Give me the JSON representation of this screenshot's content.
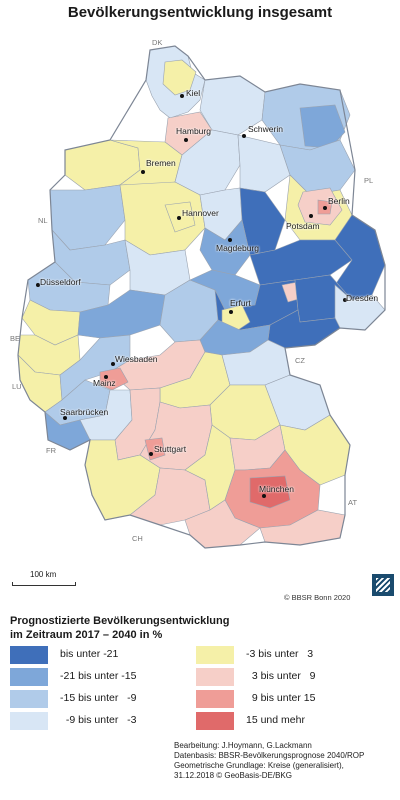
{
  "title": "Bevölkerungsentwicklung insgesamt",
  "colors": {
    "c1": "#3f6fba",
    "c2": "#7ea7d9",
    "c3": "#b0cbe9",
    "c4": "#d8e6f5",
    "c5": "#f5f0a8",
    "c6": "#f6cfc8",
    "c7": "#ef9d97",
    "c8": "#e06a6a",
    "border": "#9aa3b0",
    "outline": "#7d8695"
  },
  "cities": {
    "kiel": "Kiel",
    "hamburg": "Hamburg",
    "schwerin": "Schwerin",
    "bremen": "Bremen",
    "berlin": "Berlin",
    "potsdam": "Potsdam",
    "hannover": "Hannover",
    "magdeburg": "Magdeburg",
    "duesseldorf": "Düsseldorf",
    "erfurt": "Erfurt",
    "dresden": "Dresden",
    "wiesbaden": "Wiesbaden",
    "mainz": "Mainz",
    "saarbruecken": "Saarbrücken",
    "stuttgart": "Stuttgart",
    "muenchen": "München"
  },
  "countries": {
    "dk": "DK",
    "pl": "PL",
    "nl": "NL",
    "be": "BE",
    "lu": "LU",
    "fr": "FR",
    "cz": "CZ",
    "at": "AT",
    "ch": "CH"
  },
  "scale_label": "100  km",
  "credit": "© BBSR Bonn 2020",
  "legend": {
    "title_line1": "Prognostizierte Bevölkerungsentwicklung",
    "title_line2": "im Zeitraum 2017 – 2040 in %",
    "items": [
      {
        "label": "bis unter -21",
        "color": "#3f6fba"
      },
      {
        "label": "-21 bis unter -15",
        "color": "#7ea7d9"
      },
      {
        "label": "-15 bis unter   -9",
        "color": "#b0cbe9"
      },
      {
        "label": "  -9 bis unter   -3",
        "color": "#d8e6f5"
      },
      {
        "label": "-3 bis unter   3",
        "color": "#f5f0a8"
      },
      {
        "label": "  3 bis unter   9",
        "color": "#f6cfc8"
      },
      {
        "label": "  9 bis unter 15",
        "color": "#ef9d97"
      },
      {
        "label": "15 und mehr",
        "color": "#e06a6a"
      }
    ]
  },
  "source": {
    "line1": "Bearbeitung: J.Hoymann, G.Lackmann",
    "line2": "Datenbasis: BBSR-Bevölkerungsprognose 2040/ROP",
    "line3": "Geometrische Grundlage: Kreise (generalisiert),",
    "line4": "31.12.2018 © GeoBasis-DE/BKG"
  }
}
